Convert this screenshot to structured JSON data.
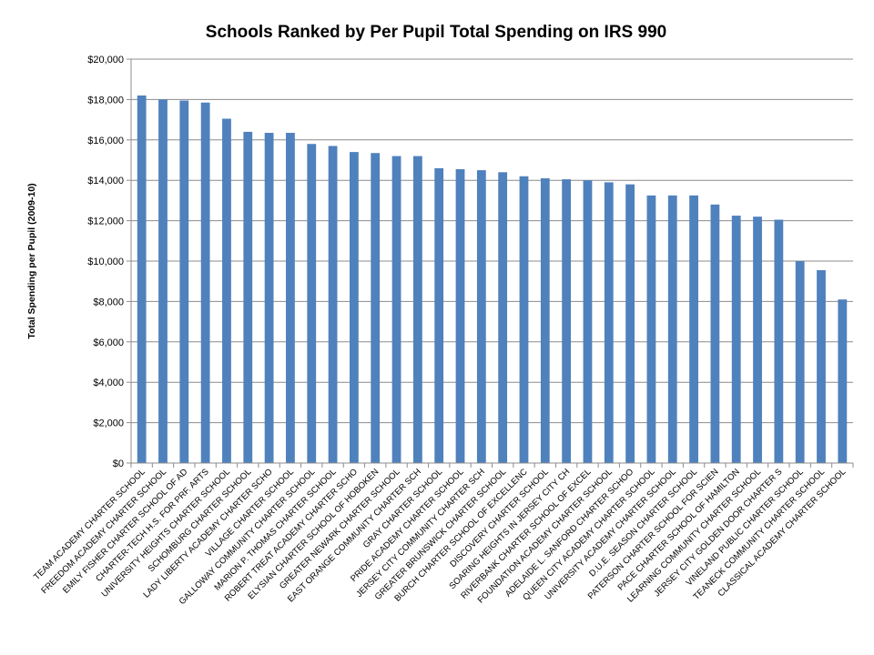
{
  "chart_data": {
    "type": "bar",
    "title": "Schools Ranked by Per Pupil Total Spending on IRS 990",
    "xlabel": "",
    "ylabel": "Total Spending per Pupil (2009-10)",
    "ylim": [
      0,
      20000
    ],
    "yticks": [
      0,
      2000,
      4000,
      6000,
      8000,
      10000,
      12000,
      14000,
      16000,
      18000,
      20000
    ],
    "ytick_labels": [
      "$0",
      "$2,000",
      "$4,000",
      "$6,000",
      "$8,000",
      "$10,000",
      "$12,000",
      "$14,000",
      "$16,000",
      "$18,000",
      "$20,000"
    ],
    "grid": true,
    "bar_color": "#4f81bd",
    "categories": [
      "TEAM ACADEMY CHARTER SCHOOL",
      "FREEDOM ACADEMY CHARTER SCHOOL",
      "EMILY FISHER CHARTER SCHOOL OF AD",
      "CHARTER-TECH H.S. FOR PRF. ARTS",
      "UNIVERSITY HEIGHTS CHARTER SCHOOL",
      "SCHOMBURG CHARTER SCHOOL",
      "LADY LIBERTY ACADEMY CHARTER SCHO",
      "VILLAGE CHARTER SCHOOL",
      "GALLOWAY COMMUNITY CHARTER SCHOOL",
      "MARION P. THOMAS CHARTER SCHOOL",
      "ROBERT TREAT ACADEMY CHARTER SCHO",
      "ELYSIAN CHARTER SCHOOL OF HOBOKEN",
      "GREATER NEWARK CHARTER SCHOOL",
      "EAST ORANGE COMMUNITY CHARTER SCH",
      "GRAY CHARTER SCHOOL",
      "PRIDE ACADEMY CHARTER SCHOOL",
      "JERSEY CITY COMMUNITY CHARTER SCH",
      "GREATER BRUNSWICK CHARTER SCHOOL",
      "BURCH CHARTER SCHOOL OF EXCELLENC",
      "DISCOVERY CHARTER SCHOOL",
      "SOARING HEIGHTS IN JERSEY CITY CH",
      "RIVERBANK CHARTER SCHOOL OF EXCEL",
      "FOUNDATION ACADEMY CHARTER SCHOOL",
      "ADELAIDE L. SANFORD CHARTER SCHOO",
      "QUEEN CITY ACADEMY CHARTER SCHOOL",
      "UNIVERSITY ACADEMY CHARTER SCHOOL",
      "D.U.E. SEASON CHARTER SCHOOL",
      "PATERSON CHARTER SCHOOL FOR SCIEN",
      "PACE CHARTER SCHOOL OF HAMILTON",
      "LEARNING COMMUNITY CHARTER SCHOOL",
      "JERSEY CITY GOLDEN DOOR CHARTER S",
      "VINELAND PUBLIC CHARTER SCHOOL",
      "TEANECK COMMUNITY CHARTER SCHOOL",
      "CLASSICAL ACADEMY CHARTER SCHOOL"
    ],
    "values": [
      18200,
      18000,
      17950,
      17850,
      17050,
      16400,
      16350,
      16350,
      15800,
      15700,
      15400,
      15350,
      15200,
      15200,
      14600,
      14550,
      14500,
      14400,
      14200,
      14100,
      14050,
      14000,
      13900,
      13800,
      13250,
      13250,
      13250,
      12800,
      12250,
      12200,
      12050,
      10000,
      9550,
      8100
    ]
  }
}
